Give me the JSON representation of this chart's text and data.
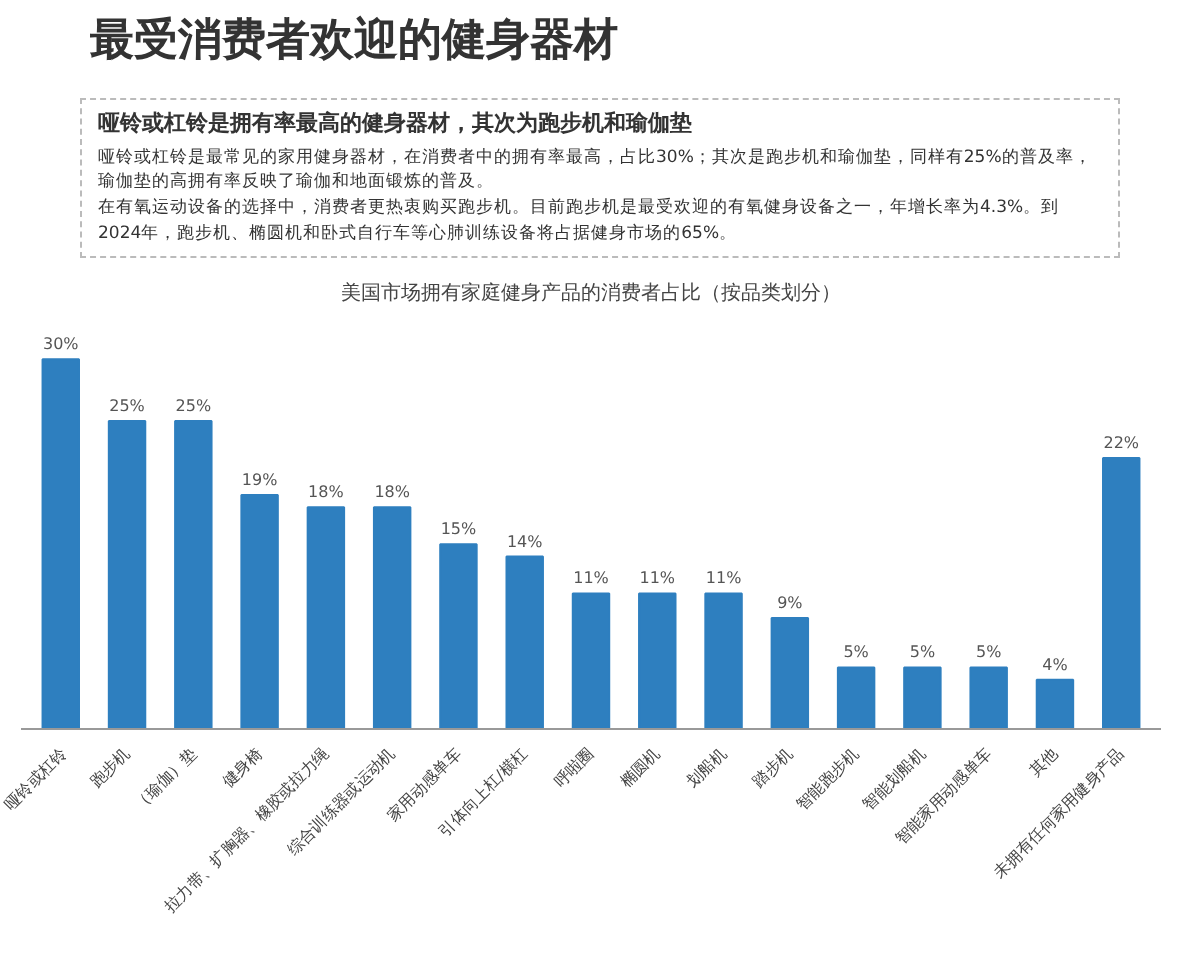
{
  "chart_data": {
    "type": "bar",
    "title": "最受消费者欢迎的健身器材",
    "subtitle": "美国市场拥有家庭健身产品的消费者占比（按品类划分）",
    "annotations": [
      "哑铃或杠铃是拥有率最高的健身器材，其次为跑步机和瑜伽垫",
      "哑铃或杠铃是最常见的家用健身器材，在消费者中的拥有率最高，占比30%；其次是跑步机和瑜伽垫，同样有25%的普及率，瑜伽垫的高拥有率反映了瑜伽和地面锻炼的普及。",
      "在有氧运动设备的选择中，消费者更热衷购买跑步机。目前跑步机是最受欢迎的有氧健身设备之一，年增长率为4.3%。到2024年，跑步机、椭圆机和卧式自行车等心肺训练设备将占据健身市场的65%。"
    ],
    "categories": [
      "哑铃或杠铃",
      "跑步机",
      "（瑜伽）垫",
      "健身椅",
      "拉力带、扩胸器、橡胶或拉力绳",
      "综合训练器或运动机",
      "家用动感单车",
      "引体向上杠/横杠",
      "呼啦圈",
      "椭圆机",
      "划船机",
      "踏步机",
      "智能跑步机",
      "智能划船机",
      "智能家用动感单车",
      "其他",
      "未拥有任何家用健身产品"
    ],
    "values": [
      30,
      25,
      25,
      19,
      18,
      18,
      15,
      14,
      11,
      11,
      11,
      9,
      5,
      5,
      5,
      4,
      22
    ],
    "value_labels": [
      "30%",
      "25%",
      "25%",
      "19%",
      "18%",
      "18%",
      "15%",
      "14%",
      "11%",
      "11%",
      "11%",
      "9%",
      "5%",
      "5%",
      "5%",
      "4%",
      "22%"
    ],
    "color": "#2e7fbf",
    "grid": false
  }
}
